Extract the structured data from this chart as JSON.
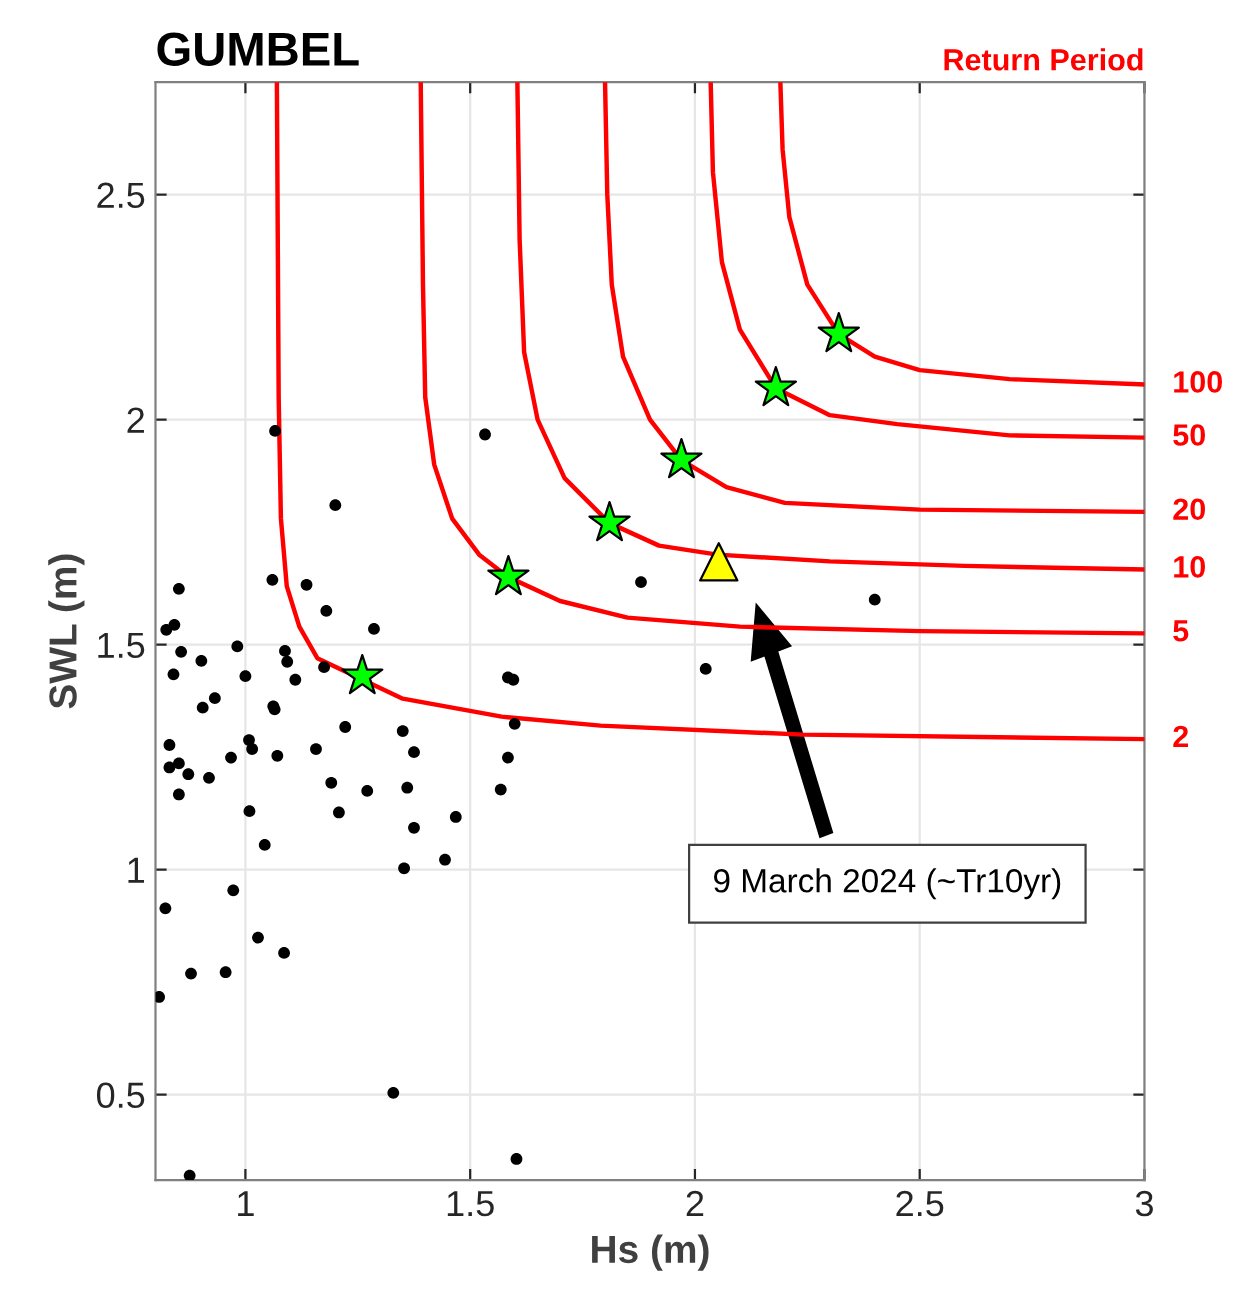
{
  "chart_data": {
    "type": "line",
    "title": "GUMBEL",
    "xlabel": "Hs (m)",
    "ylabel": "SWL (m)",
    "legend_title": "Return Period",
    "xlim": [
      0.8,
      3
    ],
    "ylim": [
      0.31,
      2.75
    ],
    "xticks": [
      1,
      1.5,
      2,
      2.5,
      3
    ],
    "yticks": [
      0.5,
      1,
      1.5,
      2,
      2.5
    ],
    "grid": true,
    "legend": false,
    "annotations": [
      "9 March 2024 (~Tr10yr)"
    ],
    "series": [
      {
        "type": "scatter",
        "marker": "circle",
        "color": "#000000",
        "x": [
          1.066,
          1.533,
          1.2,
          0.852,
          1.06,
          1.136,
          1.18,
          1.286,
          0.824,
          0.842,
          0.857,
          0.84,
          0.902,
          0.982,
          1.0,
          1.088,
          1.093,
          1.111,
          1.175,
          1.062,
          1.065,
          0.932,
          0.905,
          1.222,
          1.35,
          1.375,
          1.584,
          1.596,
          1.599,
          1.584,
          1.568,
          0.831,
          0.831,
          0.852,
          0.873,
          0.919,
          0.968,
          1.008,
          1.015,
          1.071,
          1.157,
          1.191,
          1.271,
          1.36,
          0.852,
          1.009,
          1.208,
          1.375,
          1.468,
          1.043,
          1.353,
          1.444,
          0.973,
          0.822,
          1.028,
          1.086,
          0.879,
          0.956,
          0.808,
          1.329,
          1.603,
          0.876,
          1.88,
          2.4,
          2.024
        ],
        "values": [
          1.975,
          1.967,
          1.81,
          1.624,
          1.644,
          1.633,
          1.575,
          1.535,
          1.533,
          1.544,
          1.484,
          1.434,
          1.464,
          1.496,
          1.43,
          1.486,
          1.462,
          1.422,
          1.45,
          1.363,
          1.356,
          1.381,
          1.36,
          1.317,
          1.308,
          1.261,
          1.427,
          1.422,
          1.324,
          1.249,
          1.178,
          1.277,
          1.227,
          1.236,
          1.212,
          1.204,
          1.249,
          1.288,
          1.268,
          1.253,
          1.268,
          1.193,
          1.175,
          1.182,
          1.167,
          1.13,
          1.127,
          1.093,
          1.117,
          1.055,
          1.003,
          1.022,
          0.954,
          0.914,
          0.849,
          0.815,
          0.769,
          0.772,
          0.717,
          0.504,
          0.357,
          0.32,
          1.639,
          1.6,
          1.446
        ]
      },
      {
        "name": "2",
        "color": "#ff0000",
        "x": [
          1.07,
          1.074,
          1.079,
          1.092,
          1.12,
          1.16,
          1.35,
          1.57,
          1.79,
          2.24,
          3.0
        ],
        "values": [
          2.75,
          2.05,
          1.78,
          1.63,
          1.54,
          1.47,
          1.38,
          1.34,
          1.32,
          1.3,
          1.29
        ]
      },
      {
        "name": "5",
        "color": "#ff0000",
        "x": [
          1.39,
          1.395,
          1.4,
          1.42,
          1.46,
          1.52,
          1.585,
          1.7,
          1.85,
          2.1,
          2.5,
          3.0
        ],
        "values": [
          2.75,
          2.3,
          2.05,
          1.9,
          1.78,
          1.7,
          1.65,
          1.597,
          1.56,
          1.54,
          1.53,
          1.525
        ]
      },
      {
        "name": "10",
        "color": "#ff0000",
        "x": [
          1.605,
          1.61,
          1.62,
          1.65,
          1.71,
          1.81,
          1.92,
          2.05,
          2.3,
          2.6,
          3.0
        ],
        "values": [
          2.75,
          2.4,
          2.15,
          2.0,
          1.87,
          1.77,
          1.72,
          1.7,
          1.685,
          1.675,
          1.667
        ]
      },
      {
        "name": "20",
        "color": "#ff0000",
        "x": [
          1.8,
          1.805,
          1.815,
          1.84,
          1.9,
          1.97,
          2.07,
          2.2,
          2.5,
          3.0
        ],
        "values": [
          2.75,
          2.5,
          2.3,
          2.14,
          2.0,
          1.91,
          1.85,
          1.815,
          1.8,
          1.795
        ]
      },
      {
        "name": "50",
        "color": "#ff0000",
        "x": [
          2.035,
          2.04,
          2.06,
          2.1,
          2.18,
          2.3,
          2.45,
          2.7,
          3.0
        ],
        "values": [
          2.75,
          2.55,
          2.35,
          2.2,
          2.07,
          2.01,
          1.99,
          1.965,
          1.96
        ]
      },
      {
        "name": "100",
        "color": "#ff0000",
        "x": [
          2.19,
          2.195,
          2.21,
          2.25,
          2.32,
          2.4,
          2.5,
          2.7,
          3.0
        ],
        "values": [
          2.75,
          2.6,
          2.45,
          2.3,
          2.19,
          2.14,
          2.11,
          2.09,
          2.078
        ]
      },
      {
        "type": "scatter",
        "marker": "star",
        "color": "#00ff00",
        "x": [
          1.26,
          1.585,
          1.81,
          1.97,
          2.18,
          2.32
        ],
        "values": [
          1.43,
          1.65,
          1.77,
          1.91,
          2.07,
          2.19
        ]
      },
      {
        "type": "scatter",
        "marker": "triangle",
        "color": "#ffff00",
        "x": [
          2.053
        ],
        "values": [
          1.684
        ]
      }
    ]
  }
}
